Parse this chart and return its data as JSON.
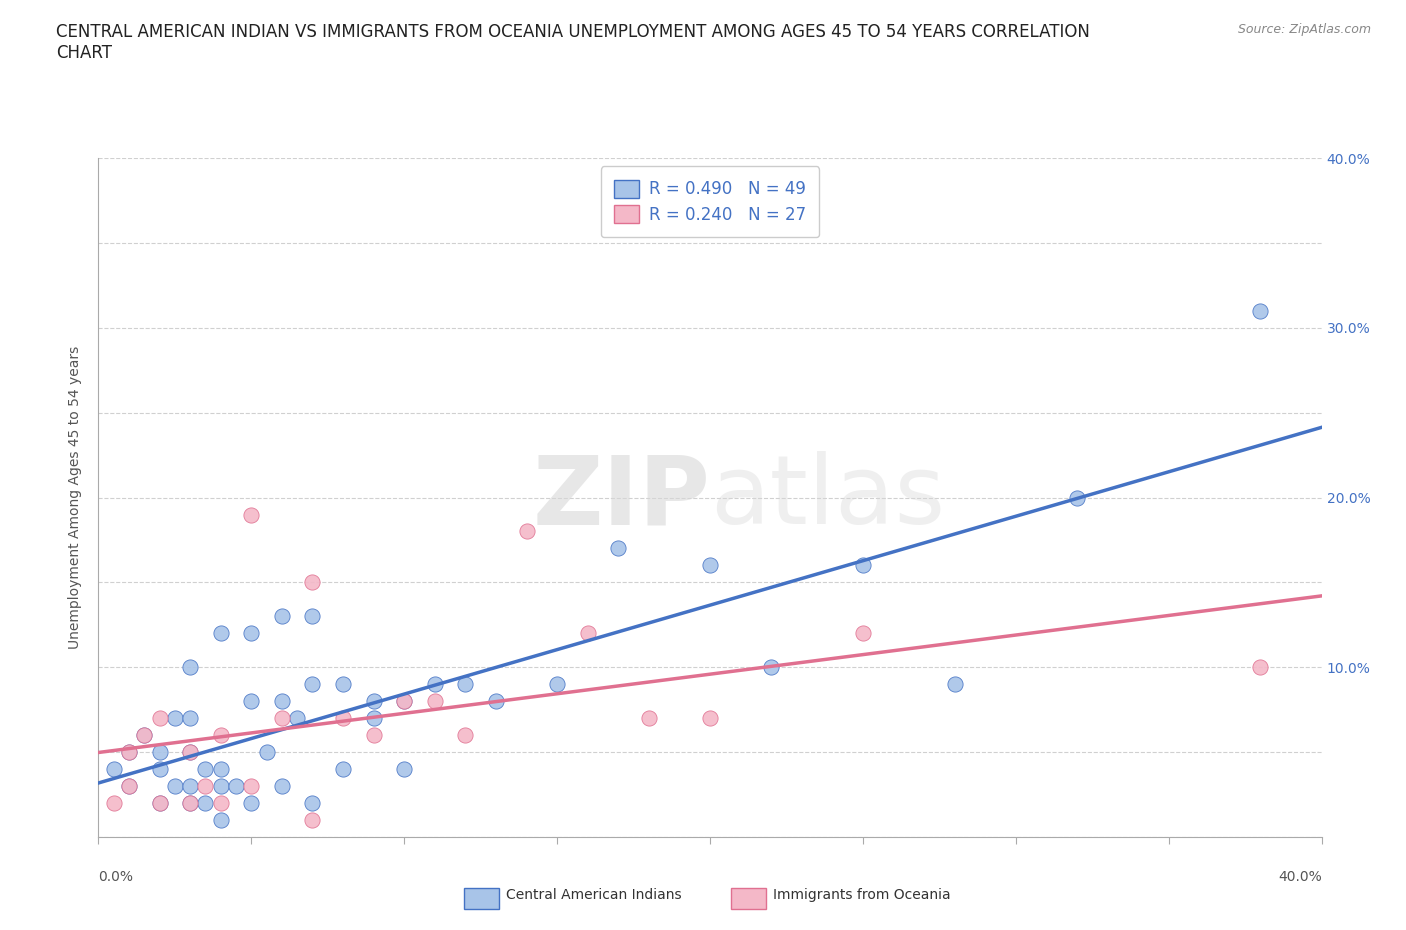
{
  "title_line1": "CENTRAL AMERICAN INDIAN VS IMMIGRANTS FROM OCEANIA UNEMPLOYMENT AMONG AGES 45 TO 54 YEARS CORRELATION",
  "title_line2": "CHART",
  "source_text": "Source: ZipAtlas.com",
  "ylabel": "Unemployment Among Ages 45 to 54 years",
  "xlim": [
    0.0,
    0.4
  ],
  "ylim": [
    0.0,
    0.4
  ],
  "xticks": [
    0.0,
    0.05,
    0.1,
    0.15,
    0.2,
    0.25,
    0.3,
    0.35,
    0.4
  ],
  "yticks": [
    0.0,
    0.05,
    0.1,
    0.15,
    0.2,
    0.25,
    0.3,
    0.35,
    0.4
  ],
  "ytick_labels_right": [
    "",
    "",
    "10.0%",
    "",
    "20.0%",
    "",
    "30.0%",
    "",
    "40.0%"
  ],
  "watermark_zip": "ZIP",
  "watermark_atlas": "atlas",
  "legend_r1": "R = 0.490   N = 49",
  "legend_r2": "R = 0.240   N = 27",
  "legend_label1": "Central American Indians",
  "legend_label2": "Immigrants from Oceania",
  "color1": "#a8c4e8",
  "color2": "#f4b8c8",
  "line_color1": "#4472c4",
  "line_color2": "#e07090",
  "scatter1_x": [
    0.005,
    0.01,
    0.01,
    0.015,
    0.02,
    0.02,
    0.02,
    0.025,
    0.025,
    0.03,
    0.03,
    0.03,
    0.03,
    0.03,
    0.035,
    0.035,
    0.04,
    0.04,
    0.04,
    0.04,
    0.045,
    0.05,
    0.05,
    0.05,
    0.055,
    0.06,
    0.06,
    0.06,
    0.065,
    0.07,
    0.07,
    0.07,
    0.08,
    0.08,
    0.09,
    0.09,
    0.1,
    0.1,
    0.11,
    0.12,
    0.13,
    0.15,
    0.17,
    0.2,
    0.22,
    0.25,
    0.28,
    0.32,
    0.38
  ],
  "scatter1_y": [
    0.04,
    0.03,
    0.05,
    0.06,
    0.02,
    0.04,
    0.05,
    0.03,
    0.07,
    0.02,
    0.03,
    0.05,
    0.07,
    0.1,
    0.02,
    0.04,
    0.01,
    0.03,
    0.04,
    0.12,
    0.03,
    0.02,
    0.08,
    0.12,
    0.05,
    0.03,
    0.08,
    0.13,
    0.07,
    0.02,
    0.09,
    0.13,
    0.04,
    0.09,
    0.07,
    0.08,
    0.04,
    0.08,
    0.09,
    0.09,
    0.08,
    0.09,
    0.17,
    0.16,
    0.1,
    0.16,
    0.09,
    0.2,
    0.31
  ],
  "scatter2_x": [
    0.005,
    0.01,
    0.01,
    0.015,
    0.02,
    0.02,
    0.03,
    0.03,
    0.035,
    0.04,
    0.04,
    0.05,
    0.05,
    0.06,
    0.07,
    0.07,
    0.08,
    0.09,
    0.1,
    0.11,
    0.12,
    0.14,
    0.16,
    0.18,
    0.2,
    0.25,
    0.38
  ],
  "scatter2_y": [
    0.02,
    0.03,
    0.05,
    0.06,
    0.02,
    0.07,
    0.02,
    0.05,
    0.03,
    0.02,
    0.06,
    0.03,
    0.19,
    0.07,
    0.01,
    0.15,
    0.07,
    0.06,
    0.08,
    0.08,
    0.06,
    0.18,
    0.12,
    0.07,
    0.07,
    0.12,
    0.1
  ],
  "background_color": "#ffffff",
  "grid_color": "#d0d0d0",
  "title_color": "#222222",
  "title_fontsize": 12,
  "axis_label_fontsize": 10,
  "tick_fontsize": 10,
  "legend_fontsize": 12
}
